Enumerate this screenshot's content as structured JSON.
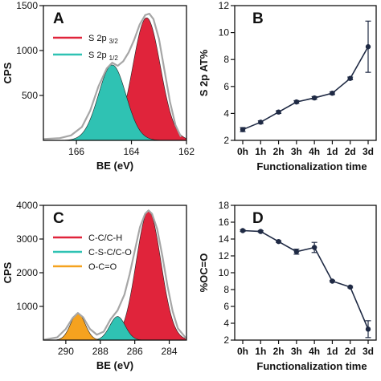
{
  "chart_data": [
    {
      "panel": "A",
      "type": "area",
      "xlabel": "BE (eV)",
      "ylabel": "CPS",
      "xlim": [
        167.2,
        162.0
      ],
      "ylim": [
        0,
        1500
      ],
      "x_reversed": true,
      "x_ticks": [
        166,
        164,
        162
      ],
      "y_ticks": [
        500,
        1000,
        1500
      ],
      "legend_position": "top-left",
      "series": [
        {
          "name": "S 2p",
          "sub": "3/2",
          "color": "#e0243b",
          "center": 163.45,
          "sigma": 0.5,
          "amplitude": 1365
        },
        {
          "name": "S 2p",
          "sub": "1/2",
          "color": "#2fc2b3",
          "center": 164.7,
          "sigma": 0.5,
          "amplitude": 840
        }
      ],
      "envelope": {
        "color": "#a6a6a6",
        "x": [
          167.2,
          166.6,
          166.2,
          165.8,
          165.5,
          165.2,
          164.9,
          164.7,
          164.5,
          164.3,
          164.1,
          163.9,
          163.7,
          163.5,
          163.35,
          163.2,
          163.0,
          162.8,
          162.6,
          162.4,
          162.2
        ],
        "y": [
          15,
          25,
          55,
          150,
          330,
          600,
          800,
          865,
          830,
          880,
          980,
          1120,
          1290,
          1395,
          1410,
          1350,
          1130,
          780,
          430,
          170,
          40
        ]
      }
    },
    {
      "panel": "B",
      "type": "line",
      "xlabel": "Functionalization time",
      "ylabel": "S 2p AT%",
      "categories": [
        "0h",
        "1h",
        "2h",
        "3h",
        "4h",
        "1d",
        "2d",
        "3d"
      ],
      "ylim": [
        2,
        12
      ],
      "y_ticks": [
        2,
        4,
        6,
        8,
        10,
        12
      ],
      "values": [
        2.8,
        3.35,
        4.1,
        4.85,
        5.15,
        5.5,
        6.6,
        8.95
      ],
      "errors": [
        0.15,
        0.1,
        0.1,
        0.1,
        0.1,
        0.1,
        0.1,
        1.9
      ],
      "color": "#1f2a44"
    },
    {
      "panel": "C",
      "type": "area",
      "xlabel": "BE (eV)",
      "ylabel": "CPS",
      "xlim": [
        291.3,
        283.0
      ],
      "ylim": [
        0,
        4000
      ],
      "x_reversed": true,
      "x_ticks": [
        290,
        288,
        286,
        284
      ],
      "y_ticks": [
        1000,
        2000,
        3000,
        4000
      ],
      "legend_position": "top-left",
      "series": [
        {
          "name": "C-C/C-H",
          "color": "#e0243b",
          "center": 285.2,
          "sigma": 0.72,
          "amplitude": 3830
        },
        {
          "name": "C-S-C/C-O",
          "color": "#2fc2b3",
          "center": 287.0,
          "sigma": 0.45,
          "amplitude": 700
        },
        {
          "name": "O-C=O",
          "color": "#f5a21f",
          "center": 289.3,
          "sigma": 0.42,
          "amplitude": 800
        }
      ],
      "envelope": {
        "color": "#a6a6a6",
        "x": [
          291.3,
          290.5,
          290.0,
          289.6,
          289.3,
          289.0,
          288.6,
          288.2,
          287.8,
          287.4,
          287.0,
          286.6,
          286.3,
          286.0,
          285.7,
          285.4,
          285.2,
          285.0,
          284.7,
          284.4,
          284.1,
          283.8,
          283.5,
          283.0
        ],
        "y": [
          10,
          80,
          330,
          660,
          805,
          680,
          330,
          160,
          250,
          620,
          880,
          1350,
          1950,
          2650,
          3350,
          3750,
          3850,
          3750,
          3300,
          2500,
          1600,
          850,
          350,
          40
        ]
      }
    },
    {
      "panel": "D",
      "type": "line",
      "xlabel": "Functionalization time",
      "ylabel": "%OC=O",
      "categories": [
        "0h",
        "1h",
        "2h",
        "3h",
        "4h",
        "1d",
        "2d",
        "3d"
      ],
      "ylim": [
        2,
        18
      ],
      "y_ticks": [
        2,
        4,
        6,
        8,
        10,
        12,
        14,
        16,
        18
      ],
      "values": [
        15.0,
        14.9,
        13.7,
        12.5,
        13.0,
        9.0,
        8.3,
        3.3
      ],
      "errors": [
        0.1,
        0.1,
        0.1,
        0.3,
        0.6,
        0.1,
        0.1,
        1.0
      ],
      "color": "#1f2a44"
    }
  ]
}
